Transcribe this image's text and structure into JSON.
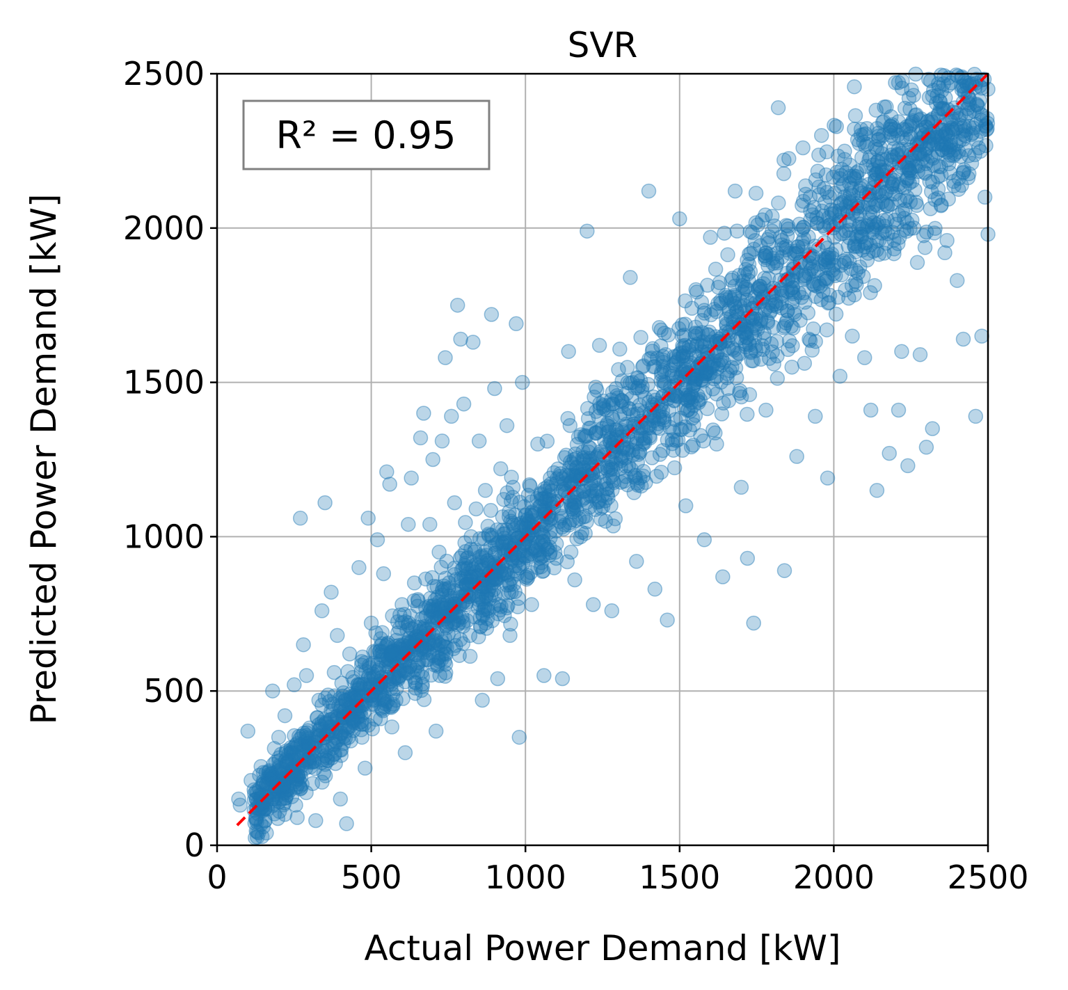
{
  "chart_data": {
    "type": "scatter",
    "title": "SVR",
    "xlabel": "Actual Power Demand [kW]",
    "ylabel": "Predicted Power Demand [kW]",
    "xlim": [
      0,
      2500
    ],
    "ylim": [
      0,
      2500
    ],
    "xticks": [
      "0",
      "500",
      "1000",
      "1500",
      "2000",
      "2500"
    ],
    "yticks": [
      "0",
      "500",
      "1000",
      "1500",
      "2000",
      "2500"
    ],
    "grid": true,
    "annotation": "R² = 0.95",
    "reference_line": {
      "x": [
        65,
        2500
      ],
      "y": [
        65,
        2500
      ],
      "style": "dashed"
    },
    "series": [
      {
        "marker": "circle",
        "color": "#1f77b4",
        "alpha": 0.3,
        "points": [
          [
            70,
            150
          ],
          [
            75,
            130
          ],
          [
            100,
            370
          ],
          [
            110,
            210
          ],
          [
            120,
            180
          ],
          [
            130,
            120
          ],
          [
            150,
            60
          ],
          [
            160,
            40
          ],
          [
            170,
            230
          ],
          [
            180,
            500
          ],
          [
            190,
            270
          ],
          [
            200,
            350
          ],
          [
            210,
            150
          ],
          [
            220,
            100
          ],
          [
            220,
            420
          ],
          [
            240,
            300
          ],
          [
            250,
            520
          ],
          [
            260,
            90
          ],
          [
            270,
            1060
          ],
          [
            280,
            650
          ],
          [
            290,
            550
          ],
          [
            300,
            380
          ],
          [
            310,
            200
          ],
          [
            320,
            80
          ],
          [
            330,
            470
          ],
          [
            340,
            760
          ],
          [
            350,
            1110
          ],
          [
            350,
            290
          ],
          [
            370,
            820
          ],
          [
            380,
            560
          ],
          [
            390,
            680
          ],
          [
            400,
            150
          ],
          [
            410,
            330
          ],
          [
            420,
            70
          ],
          [
            430,
            620
          ],
          [
            450,
            440
          ],
          [
            460,
            900
          ],
          [
            470,
            350
          ],
          [
            480,
            250
          ],
          [
            490,
            1060
          ],
          [
            500,
            720
          ],
          [
            510,
            540
          ],
          [
            520,
            990
          ],
          [
            530,
            410
          ],
          [
            540,
            880
          ],
          [
            550,
            1210
          ],
          [
            560,
            1170
          ],
          [
            570,
            630
          ],
          [
            580,
            470
          ],
          [
            600,
            780
          ],
          [
            610,
            300
          ],
          [
            620,
            1040
          ],
          [
            630,
            1190
          ],
          [
            640,
            850
          ],
          [
            650,
            560
          ],
          [
            660,
            1320
          ],
          [
            670,
            1400
          ],
          [
            680,
            700
          ],
          [
            690,
            1040
          ],
          [
            700,
            1250
          ],
          [
            710,
            370
          ],
          [
            720,
            950
          ],
          [
            730,
            1310
          ],
          [
            740,
            1580
          ],
          [
            750,
            830
          ],
          [
            760,
            1390
          ],
          [
            770,
            1110
          ],
          [
            780,
            1750
          ],
          [
            790,
            1640
          ],
          [
            800,
            1430
          ],
          [
            810,
            930
          ],
          [
            820,
            680
          ],
          [
            830,
            1630
          ],
          [
            840,
            1090
          ],
          [
            850,
            1310
          ],
          [
            860,
            470
          ],
          [
            870,
            1150
          ],
          [
            880,
            760
          ],
          [
            890,
            1720
          ],
          [
            900,
            1480
          ],
          [
            910,
            540
          ],
          [
            920,
            1220
          ],
          [
            930,
            880
          ],
          [
            940,
            1360
          ],
          [
            950,
            680
          ],
          [
            960,
            1160
          ],
          [
            970,
            1690
          ],
          [
            980,
            350
          ],
          [
            990,
            1500
          ],
          [
            1000,
            1070
          ],
          [
            1020,
            780
          ],
          [
            1040,
            1300
          ],
          [
            1060,
            550
          ],
          [
            1080,
            1160
          ],
          [
            1100,
            930
          ],
          [
            1120,
            540
          ],
          [
            1140,
            1600
          ],
          [
            1160,
            860
          ],
          [
            1180,
            1200
          ],
          [
            1200,
            1990
          ],
          [
            1220,
            780
          ],
          [
            1240,
            1620
          ],
          [
            1260,
            1050
          ],
          [
            1280,
            760
          ],
          [
            1300,
            1450
          ],
          [
            1320,
            1180
          ],
          [
            1340,
            1840
          ],
          [
            1360,
            920
          ],
          [
            1380,
            1550
          ],
          [
            1400,
            2120
          ],
          [
            1420,
            830
          ],
          [
            1440,
            1670
          ],
          [
            1460,
            730
          ],
          [
            1480,
            1280
          ],
          [
            1500,
            2030
          ],
          [
            1520,
            1100
          ],
          [
            1540,
            1740
          ],
          [
            1560,
            1440
          ],
          [
            1580,
            990
          ],
          [
            1600,
            1970
          ],
          [
            1620,
            1300
          ],
          [
            1640,
            870
          ],
          [
            1660,
            1730
          ],
          [
            1680,
            2120
          ],
          [
            1700,
            1160
          ],
          [
            1720,
            930
          ],
          [
            1740,
            720
          ],
          [
            1760,
            1690
          ],
          [
            1780,
            1410
          ],
          [
            1800,
            1990
          ],
          [
            1820,
            2390
          ],
          [
            1840,
            890
          ],
          [
            1860,
            1800
          ],
          [
            1880,
            1260
          ],
          [
            1900,
            2260
          ],
          [
            1920,
            1640
          ],
          [
            1940,
            1390
          ],
          [
            1960,
            2300
          ],
          [
            1980,
            1190
          ],
          [
            2000,
            1880
          ],
          [
            2020,
            1520
          ],
          [
            2040,
            2180
          ],
          [
            2060,
            1650
          ],
          [
            2080,
            2070
          ],
          [
            2100,
            1580
          ],
          [
            2120,
            1410
          ],
          [
            2140,
            1150
          ],
          [
            2160,
            2300
          ],
          [
            2180,
            1270
          ],
          [
            2200,
            2110
          ],
          [
            2210,
            1410
          ],
          [
            2220,
            1600
          ],
          [
            2240,
            1230
          ],
          [
            2260,
            2000
          ],
          [
            2280,
            1590
          ],
          [
            2300,
            1290
          ],
          [
            2320,
            1350
          ],
          [
            2340,
            2200
          ],
          [
            2360,
            1920
          ],
          [
            2380,
            2470
          ],
          [
            2400,
            1830
          ],
          [
            2420,
            1640
          ],
          [
            2440,
            2400
          ],
          [
            2460,
            1390
          ],
          [
            2470,
            2260
          ],
          [
            2480,
            2480
          ],
          [
            2490,
            2100
          ],
          [
            2500,
            1980
          ],
          [
            2500,
            2450
          ],
          [
            2480,
            1650
          ]
        ]
      }
    ]
  },
  "colors": {
    "points": "#1f77b4",
    "reference_line": "#ff0000",
    "grid": "#b0b0b0",
    "annotation_border": "#808080"
  }
}
